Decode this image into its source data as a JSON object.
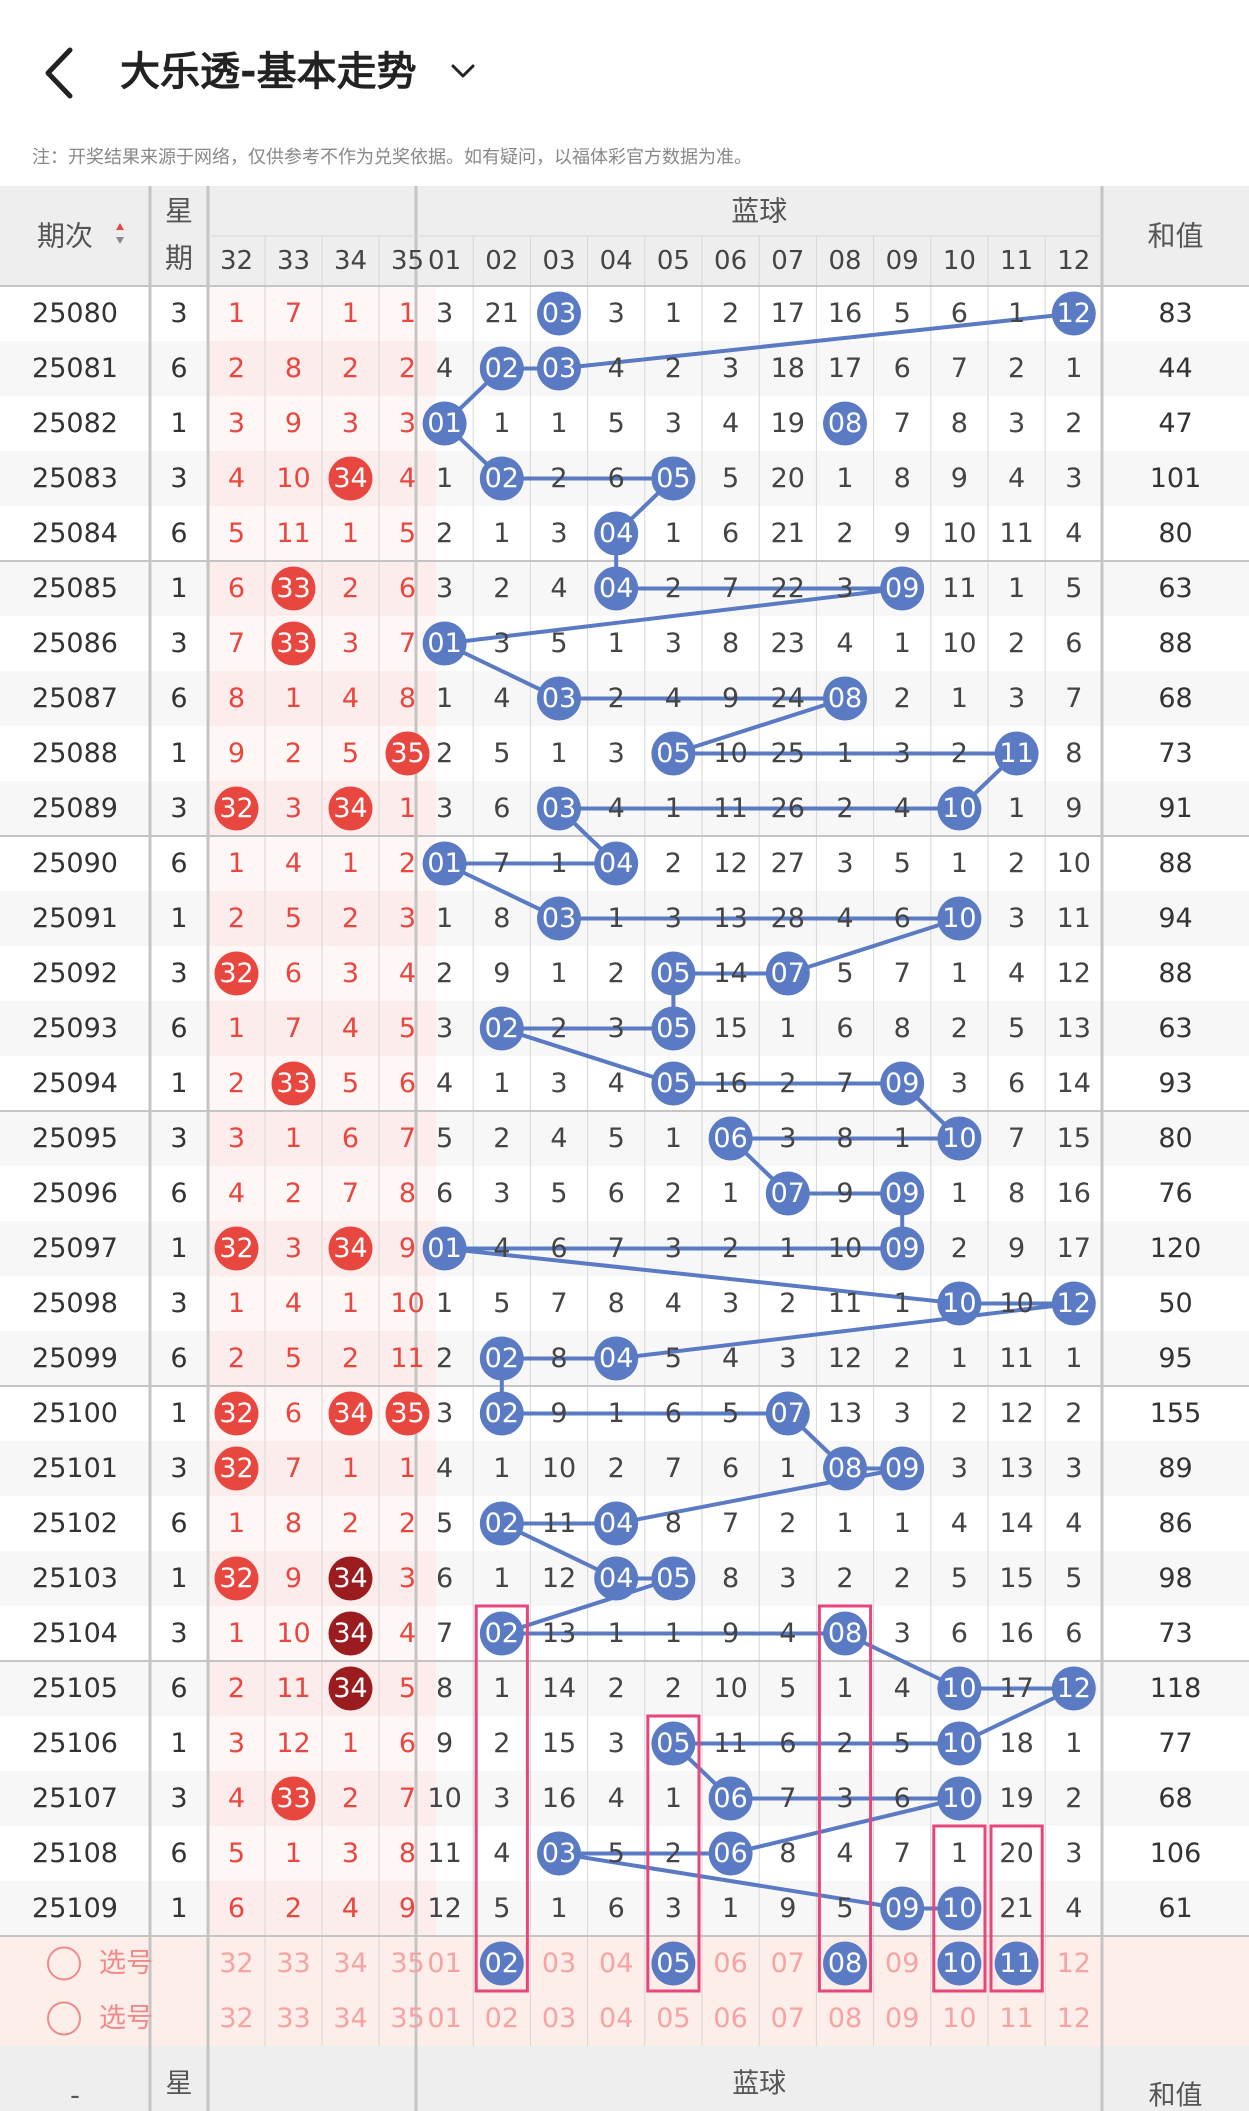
{
  "header": {
    "title": "大乐透-基本走势",
    "note": "注：开奖结果来源于网络，仅供参考不作为兑奖依据。如有疑问，以福体彩官方数据为准。"
  },
  "table": {
    "col_period": "期次",
    "col_week": "星期",
    "col_blue": "蓝球",
    "col_sum": "和值",
    "front_headers": [
      "32",
      "33",
      "34",
      "35"
    ],
    "blue_headers": [
      "01",
      "02",
      "03",
      "04",
      "05",
      "06",
      "07",
      "08",
      "09",
      "10",
      "11",
      "12"
    ],
    "rows": [
      {
        "p": "25080",
        "w": "3",
        "f": [
          "1",
          "7",
          "1",
          "1"
        ],
        "fh": [],
        "b": [
          "3",
          "21",
          "03",
          "3",
          "1",
          "2",
          "17",
          "16",
          "5",
          "6",
          "1",
          "12"
        ],
        "s": "83"
      },
      {
        "p": "25081",
        "w": "6",
        "f": [
          "2",
          "8",
          "2",
          "2"
        ],
        "fh": [],
        "b": [
          "4",
          "02",
          "03",
          "4",
          "2",
          "3",
          "18",
          "17",
          "6",
          "7",
          "2",
          "1"
        ],
        "s": "44"
      },
      {
        "p": "25082",
        "w": "1",
        "f": [
          "3",
          "9",
          "3",
          "3"
        ],
        "fh": [],
        "b": [
          "01",
          "1",
          "1",
          "5",
          "3",
          "4",
          "19",
          "08",
          "7",
          "8",
          "3",
          "2"
        ],
        "s": "47"
      },
      {
        "p": "25083",
        "w": "3",
        "f": [
          "4",
          "10",
          "34",
          "4"
        ],
        "fh": [
          2
        ],
        "b": [
          "1",
          "02",
          "2",
          "6",
          "05",
          "5",
          "20",
          "1",
          "8",
          "9",
          "4",
          "3"
        ],
        "s": "101"
      },
      {
        "p": "25084",
        "w": "6",
        "f": [
          "5",
          "11",
          "1",
          "5"
        ],
        "fh": [],
        "b": [
          "2",
          "1",
          "3",
          "04",
          "1",
          "6",
          "21",
          "2",
          "9",
          "10",
          "11",
          "4"
        ],
        "s": "80"
      },
      {
        "p": "25085",
        "w": "1",
        "f": [
          "6",
          "33",
          "2",
          "6"
        ],
        "fh": [
          1
        ],
        "b": [
          "3",
          "2",
          "4",
          "04",
          "2",
          "7",
          "22",
          "3",
          "09",
          "11",
          "1",
          "5"
        ],
        "s": "63"
      },
      {
        "p": "25086",
        "w": "3",
        "f": [
          "7",
          "33",
          "3",
          "7"
        ],
        "fh": [
          1
        ],
        "b": [
          "01",
          "3",
          "5",
          "1",
          "3",
          "8",
          "23",
          "4",
          "1",
          "10",
          "2",
          "6"
        ],
        "s": "88"
      },
      {
        "p": "25087",
        "w": "6",
        "f": [
          "8",
          "1",
          "4",
          "8"
        ],
        "fh": [],
        "b": [
          "1",
          "4",
          "03",
          "2",
          "4",
          "9",
          "24",
          "08",
          "2",
          "1",
          "3",
          "7"
        ],
        "s": "68"
      },
      {
        "p": "25088",
        "w": "1",
        "f": [
          "9",
          "2",
          "5",
          "35"
        ],
        "fh": [
          3
        ],
        "b": [
          "2",
          "5",
          "1",
          "3",
          "05",
          "10",
          "25",
          "1",
          "3",
          "2",
          "11",
          "8"
        ],
        "s": "73"
      },
      {
        "p": "25089",
        "w": "3",
        "f": [
          "32",
          "3",
          "34",
          "1"
        ],
        "fh": [
          0,
          2
        ],
        "b": [
          "3",
          "6",
          "03",
          "4",
          "1",
          "11",
          "26",
          "2",
          "4",
          "10",
          "1",
          "9"
        ],
        "s": "91"
      },
      {
        "p": "25090",
        "w": "6",
        "f": [
          "1",
          "4",
          "1",
          "2"
        ],
        "fh": [],
        "b": [
          "01",
          "7",
          "1",
          "04",
          "2",
          "12",
          "27",
          "3",
          "5",
          "1",
          "2",
          "10"
        ],
        "s": "88"
      },
      {
        "p": "25091",
        "w": "1",
        "f": [
          "2",
          "5",
          "2",
          "3"
        ],
        "fh": [],
        "b": [
          "1",
          "8",
          "03",
          "1",
          "3",
          "13",
          "28",
          "4",
          "6",
          "10",
          "3",
          "11"
        ],
        "s": "94"
      },
      {
        "p": "25092",
        "w": "3",
        "f": [
          "32",
          "6",
          "3",
          "4"
        ],
        "fh": [
          0
        ],
        "b": [
          "2",
          "9",
          "1",
          "2",
          "05",
          "14",
          "07",
          "5",
          "7",
          "1",
          "4",
          "12"
        ],
        "s": "88"
      },
      {
        "p": "25093",
        "w": "6",
        "f": [
          "1",
          "7",
          "4",
          "5"
        ],
        "fh": [],
        "b": [
          "3",
          "02",
          "2",
          "3",
          "05",
          "15",
          "1",
          "6",
          "8",
          "2",
          "5",
          "13"
        ],
        "s": "63"
      },
      {
        "p": "25094",
        "w": "1",
        "f": [
          "2",
          "33",
          "5",
          "6"
        ],
        "fh": [
          1
        ],
        "b": [
          "4",
          "1",
          "3",
          "4",
          "05",
          "16",
          "2",
          "7",
          "09",
          "3",
          "6",
          "14"
        ],
        "s": "93"
      },
      {
        "p": "25095",
        "w": "3",
        "f": [
          "3",
          "1",
          "6",
          "7"
        ],
        "fh": [],
        "b": [
          "5",
          "2",
          "4",
          "5",
          "1",
          "06",
          "3",
          "8",
          "1",
          "10",
          "7",
          "15"
        ],
        "s": "80"
      },
      {
        "p": "25096",
        "w": "6",
        "f": [
          "4",
          "2",
          "7",
          "8"
        ],
        "fh": [],
        "b": [
          "6",
          "3",
          "5",
          "6",
          "2",
          "1",
          "07",
          "9",
          "09",
          "1",
          "8",
          "16"
        ],
        "s": "76"
      },
      {
        "p": "25097",
        "w": "1",
        "f": [
          "32",
          "3",
          "34",
          "9"
        ],
        "fh": [
          0,
          2
        ],
        "b": [
          "01",
          "4",
          "6",
          "7",
          "3",
          "2",
          "1",
          "10",
          "09",
          "2",
          "9",
          "17"
        ],
        "s": "120"
      },
      {
        "p": "25098",
        "w": "3",
        "f": [
          "1",
          "4",
          "1",
          "10"
        ],
        "fh": [],
        "b": [
          "1",
          "5",
          "7",
          "8",
          "4",
          "3",
          "2",
          "11",
          "1",
          "10",
          "10",
          "12"
        ],
        "s": "50"
      },
      {
        "p": "25099",
        "w": "6",
        "f": [
          "2",
          "5",
          "2",
          "11"
        ],
        "fh": [],
        "b": [
          "2",
          "02",
          "8",
          "04",
          "5",
          "4",
          "3",
          "12",
          "2",
          "1",
          "11",
          "1"
        ],
        "s": "95"
      },
      {
        "p": "25100",
        "w": "1",
        "f": [
          "32",
          "6",
          "34",
          "35"
        ],
        "fh": [
          0,
          2,
          3
        ],
        "b": [
          "3",
          "02",
          "9",
          "1",
          "6",
          "5",
          "07",
          "13",
          "3",
          "2",
          "12",
          "2"
        ],
        "s": "155"
      },
      {
        "p": "25101",
        "w": "3",
        "f": [
          "32",
          "7",
          "1",
          "1"
        ],
        "fh": [
          0
        ],
        "b": [
          "4",
          "1",
          "10",
          "2",
          "7",
          "6",
          "1",
          "08",
          "09",
          "3",
          "13",
          "3"
        ],
        "s": "89"
      },
      {
        "p": "25102",
        "w": "6",
        "f": [
          "1",
          "8",
          "2",
          "2"
        ],
        "fh": [],
        "b": [
          "5",
          "02",
          "11",
          "04",
          "8",
          "7",
          "2",
          "1",
          "1",
          "4",
          "14",
          "4"
        ],
        "s": "86"
      },
      {
        "p": "25103",
        "w": "1",
        "f": [
          "32",
          "9",
          "34",
          "3"
        ],
        "fh": [
          0,
          2
        ],
        "b": [
          "6",
          "1",
          "12",
          "04",
          "05",
          "8",
          "3",
          "2",
          "2",
          "5",
          "15",
          "5"
        ],
        "s": "98"
      },
      {
        "p": "25104",
        "w": "3",
        "f": [
          "1",
          "10",
          "34",
          "4"
        ],
        "fh": [
          2
        ],
        "b": [
          "7",
          "02",
          "13",
          "1",
          "1",
          "9",
          "4",
          "08",
          "3",
          "6",
          "16",
          "6"
        ],
        "s": "73"
      },
      {
        "p": "25105",
        "w": "6",
        "f": [
          "2",
          "11",
          "34",
          "5"
        ],
        "fh": [
          2
        ],
        "b": [
          "8",
          "1",
          "14",
          "2",
          "2",
          "10",
          "5",
          "1",
          "4",
          "10",
          "17",
          "12"
        ],
        "s": "118"
      },
      {
        "p": "25106",
        "w": "1",
        "f": [
          "3",
          "12",
          "1",
          "6"
        ],
        "fh": [],
        "b": [
          "9",
          "2",
          "15",
          "3",
          "05",
          "11",
          "6",
          "2",
          "5",
          "10",
          "18",
          "1"
        ],
        "s": "77"
      },
      {
        "p": "25107",
        "w": "3",
        "f": [
          "4",
          "33",
          "2",
          "7"
        ],
        "fh": [
          1
        ],
        "b": [
          "10",
          "3",
          "16",
          "4",
          "1",
          "06",
          "7",
          "3",
          "6",
          "10",
          "19",
          "2"
        ],
        "s": "68"
      },
      {
        "p": "25108",
        "w": "6",
        "f": [
          "5",
          "1",
          "3",
          "8"
        ],
        "fh": [],
        "b": [
          "11",
          "4",
          "03",
          "5",
          "2",
          "06",
          "8",
          "4",
          "7",
          "1",
          "20",
          "3"
        ],
        "s": "106"
      },
      {
        "p": "25109",
        "w": "1",
        "f": [
          "6",
          "2",
          "4",
          "9"
        ],
        "fh": [],
        "b": [
          "12",
          "5",
          "1",
          "6",
          "3",
          "1",
          "9",
          "5",
          "09",
          "10",
          "21",
          "4"
        ],
        "s": "61"
      }
    ],
    "blue_hits": [
      12,
      [
        2,
        3
      ],
      1,
      [
        2,
        5
      ],
      4,
      [
        4,
        9
      ],
      1,
      [
        3,
        8
      ],
      [
        5,
        11
      ],
      [
        3,
        10
      ],
      [
        1,
        4
      ],
      [
        3,
        10
      ],
      [
        5,
        7
      ],
      [
        2,
        5
      ],
      [
        5,
        9
      ],
      [
        6,
        10
      ],
      [
        7,
        9
      ],
      [
        1,
        9
      ],
      [
        10,
        12
      ],
      [
        2,
        4
      ],
      [
        2,
        7
      ],
      [
        8,
        9
      ],
      [
        2,
        4
      ],
      [
        4,
        5
      ],
      [
        2,
        8
      ],
      [
        10,
        12
      ],
      [
        5,
        10
      ],
      [
        6,
        10
      ],
      [
        3,
        6
      ],
      [
        9,
        10
      ]
    ],
    "path": [
      12,
      3,
      2,
      1,
      8,
      2,
      5,
      4,
      11,
      4,
      9,
      1,
      10,
      3,
      8,
      5,
      11,
      3,
      10,
      1,
      4,
      3,
      10,
      7,
      5,
      2,
      5,
      5,
      9,
      6,
      10,
      9,
      7,
      1,
      9,
      10,
      12,
      4,
      2,
      2,
      7,
      9,
      8,
      4,
      2,
      5,
      4,
      8,
      2,
      10,
      12,
      5,
      10,
      10,
      6,
      3,
      6,
      10,
      9
    ],
    "select_rows": [
      {
        "label": "选号",
        "front": [
          "32",
          "33",
          "34",
          "35"
        ],
        "blue": [
          "01",
          "02",
          "03",
          "04",
          "05",
          "06",
          "07",
          "08",
          "09",
          "10",
          "11",
          "12"
        ],
        "selected": [
          2,
          5,
          8,
          10,
          11
        ]
      },
      {
        "label": "选号",
        "front": [
          "32",
          "33",
          "34",
          "35"
        ],
        "blue": [
          "01",
          "02",
          "03",
          "04",
          "05",
          "06",
          "07",
          "08",
          "09",
          "10",
          "11",
          "12"
        ],
        "selected": []
      }
    ],
    "footer": {
      "period": "-",
      "week": "星期",
      "blue": "蓝球",
      "sum": "和值"
    }
  },
  "colors": {
    "blue": "#5a7bc4",
    "red": "#e8473f",
    "darkred": "#9b1c1f",
    "pink": "#e8457a",
    "grid": "#d6d6d6",
    "header_bg": "#eeeeee",
    "front_bg": "#fff3f3",
    "select_bg": "#fdeeea"
  },
  "icons": [
    "back-icon",
    "chevron-down-icon",
    "sort-icon",
    "radio-icon"
  ]
}
